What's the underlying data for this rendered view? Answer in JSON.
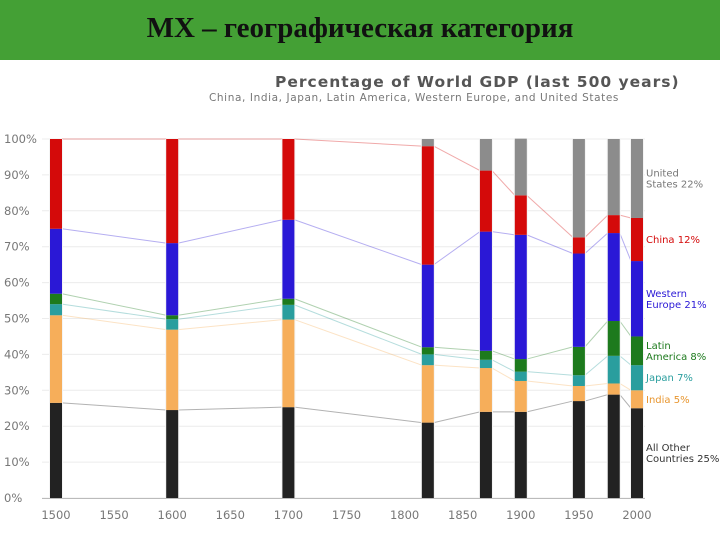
{
  "slide": {
    "title": "МХ – географическая категория"
  },
  "chart_data": {
    "type": "bar",
    "title": "Percentage of World GDP (last 500 years)",
    "subtitle": "China, India, Japan, Latin America, Western Europe, and United States",
    "ylim": [
      0,
      100
    ],
    "xlim": [
      1500,
      2000
    ],
    "x_ticks": [
      "1500",
      "1550",
      "1600",
      "1650",
      "1700",
      "1750",
      "1800",
      "1850",
      "1900",
      "1950",
      "2000"
    ],
    "y_ticks": [
      "0%",
      "10%",
      "20%",
      "30%",
      "40%",
      "50%",
      "60%",
      "70%",
      "80%",
      "90%",
      "100%"
    ],
    "years": [
      1500,
      1600,
      1700,
      1820,
      1870,
      1900,
      1950,
      1980,
      2000
    ],
    "series": [
      {
        "name": "All Other Countries",
        "color": "#222222",
        "values": [
          26.5,
          24.5,
          25.3,
          21.0,
          24.0,
          24.0,
          27.0,
          28.8,
          25.0
        ]
      },
      {
        "name": "India",
        "color": "#f6ae5a",
        "values": [
          24.4,
          22.4,
          24.4,
          16.0,
          12.2,
          8.6,
          4.2,
          3.1,
          5.0
        ]
      },
      {
        "name": "Japan",
        "color": "#2a9e9e",
        "values": [
          3.1,
          2.9,
          4.1,
          3.0,
          2.3,
          2.6,
          3.0,
          7.7,
          7.0
        ]
      },
      {
        "name": "Latin America",
        "color": "#1d7a1d",
        "values": [
          2.9,
          1.1,
          1.7,
          2.0,
          2.5,
          3.5,
          7.9,
          9.7,
          8.0
        ]
      },
      {
        "name": "Western Europe",
        "color": "#2a18d6",
        "values": [
          18.1,
          20.1,
          22.0,
          23.0,
          33.2,
          34.6,
          26.0,
          24.5,
          21.0
        ]
      },
      {
        "name": "China",
        "color": "#d40a0a",
        "values": [
          25.0,
          29.0,
          22.5,
          33.0,
          17.0,
          11.0,
          4.5,
          5.0,
          12.0
        ]
      },
      {
        "name": "United States",
        "color": "#8c8c8c",
        "values": [
          0,
          0,
          0,
          2.0,
          8.8,
          15.8,
          27.4,
          21.2,
          22.0
        ]
      }
    ],
    "legend": [
      {
        "text": [
          "United",
          "States 22%"
        ],
        "color": "#777777"
      },
      {
        "text": [
          "China 12%"
        ],
        "color": "#d40a0a"
      },
      {
        "text": [
          "Western",
          "Europe 21%"
        ],
        "color": "#2a18d6"
      },
      {
        "text": [
          "Latin",
          "America 8%"
        ],
        "color": "#1d7a1d"
      },
      {
        "text": [
          "Japan 7%"
        ],
        "color": "#2a9e9e"
      },
      {
        "text": [
          "India 5%"
        ],
        "color": "#e8962f"
      },
      {
        "text": [
          "All Other",
          "Countries 25%"
        ],
        "color": "#333333"
      }
    ]
  }
}
